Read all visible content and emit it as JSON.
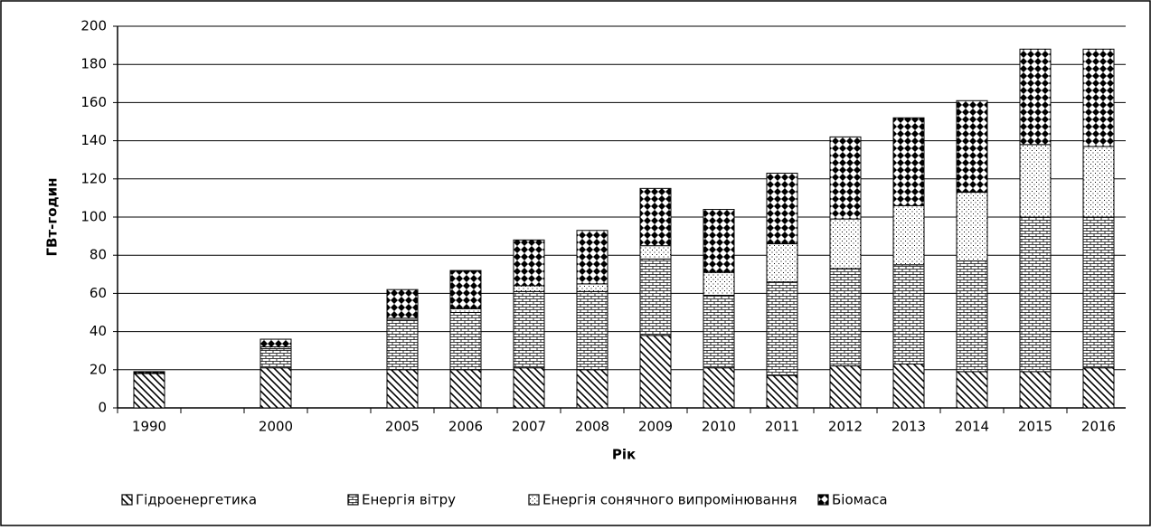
{
  "chart_data": {
    "type": "stacked_bar",
    "xlabel": "Рік",
    "ylabel": "ГВт-годин",
    "categories": [
      "1990",
      null,
      "2000",
      null,
      "2005",
      "2006",
      "2007",
      "2008",
      "2009",
      "2010",
      "2011",
      "2012",
      "2013",
      "2014",
      "2015",
      "2016"
    ],
    "series": [
      {
        "name": "Гідроенергетика",
        "color": "#000000",
        "pattern": "diagonal",
        "values": [
          18,
          null,
          21,
          null,
          20,
          20,
          21,
          20,
          38,
          21,
          17,
          22,
          23,
          19,
          19,
          21
        ]
      },
      {
        "name": "Енергія вітру",
        "color": "#000000",
        "pattern": "brick",
        "values": [
          0,
          null,
          10,
          null,
          26,
          30,
          40,
          41,
          40,
          38,
          49,
          51,
          52,
          58,
          81,
          79
        ]
      },
      {
        "name": "Енергія сонячного випромінювання",
        "color": "#000000",
        "pattern": "dots",
        "values": [
          0,
          null,
          1,
          null,
          1,
          2,
          3,
          4,
          7,
          12,
          20,
          26,
          31,
          36,
          38,
          37
        ]
      },
      {
        "name": "Біомаса",
        "color": "#000000",
        "pattern": "diamond",
        "values": [
          1,
          null,
          4,
          null,
          15,
          20,
          24,
          28,
          30,
          33,
          37,
          43,
          46,
          48,
          50,
          51
        ]
      }
    ],
    "ylim": [
      0,
      200
    ],
    "yticks": [
      0,
      20,
      40,
      60,
      80,
      100,
      120,
      140,
      160,
      180,
      200
    ],
    "grid": true,
    "legend": "bottom"
  }
}
